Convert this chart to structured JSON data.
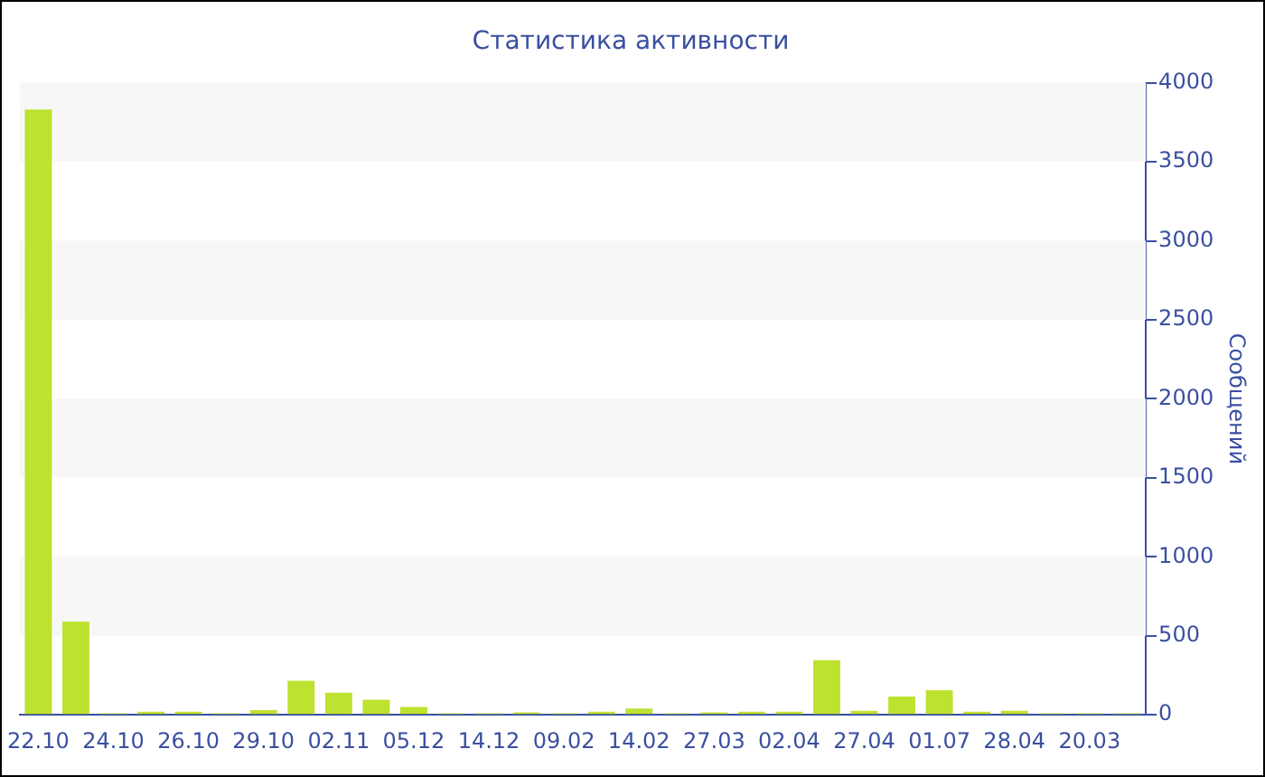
{
  "chart_data": {
    "type": "bar",
    "title": "Статистика активности",
    "ylabel": "Сообщений",
    "categories": [
      "22.10",
      null,
      "24.10",
      null,
      "26.10",
      null,
      "29.10",
      null,
      "02.11",
      null,
      "05.12",
      null,
      "14.12",
      null,
      "09.02",
      null,
      "14.02",
      null,
      "27.03",
      null,
      "02.04",
      null,
      "27.04",
      null,
      "01.07",
      null,
      "28.04",
      null,
      "20.03",
      null
    ],
    "values": [
      3830,
      590,
      10,
      20,
      20,
      10,
      30,
      215,
      140,
      95,
      50,
      10,
      10,
      15,
      10,
      20,
      40,
      10,
      15,
      20,
      20,
      345,
      25,
      115,
      155,
      20,
      25,
      10,
      10,
      10
    ],
    "color": "#bde22f",
    "ylim": [
      0,
      4000
    ],
    "yticks": [
      0,
      500,
      1000,
      1500,
      2000,
      2500,
      3000,
      3500,
      4000
    ],
    "bands": [
      {
        "axis": "y",
        "from": 500,
        "to": 1000,
        "color": "#f7f7f7"
      },
      {
        "axis": "y",
        "from": 1500,
        "to": 2000,
        "color": "#f7f7f7"
      },
      {
        "axis": "y",
        "from": 2500,
        "to": 3000,
        "color": "#f7f7f7"
      },
      {
        "axis": "y",
        "from": 3500,
        "to": 4000,
        "color": "#f7f7f7"
      }
    ],
    "grid": false,
    "legend": false
  }
}
